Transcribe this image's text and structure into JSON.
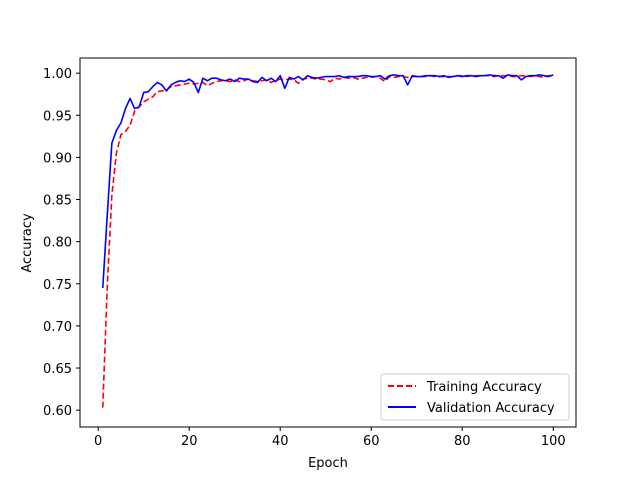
{
  "chart_data": {
    "type": "line",
    "xlabel": "Epoch",
    "ylabel": "Accuracy",
    "xlim": [
      -4,
      105
    ],
    "ylim": [
      0.58,
      1.018
    ],
    "xticks": [
      0,
      20,
      40,
      60,
      80,
      100
    ],
    "yticks": [
      0.6,
      0.65,
      0.7,
      0.75,
      0.8,
      0.85,
      0.9,
      0.95,
      1.0
    ],
    "grid": false,
    "legend_position": "lower-right",
    "x": [
      1,
      2,
      3,
      4,
      5,
      6,
      7,
      8,
      9,
      10,
      11,
      12,
      13,
      14,
      15,
      16,
      17,
      18,
      19,
      20,
      21,
      22,
      23,
      24,
      25,
      26,
      27,
      28,
      29,
      30,
      31,
      32,
      33,
      34,
      35,
      36,
      37,
      38,
      39,
      40,
      41,
      42,
      43,
      44,
      45,
      46,
      47,
      48,
      49,
      50,
      51,
      52,
      53,
      54,
      55,
      56,
      57,
      58,
      59,
      60,
      61,
      62,
      63,
      64,
      65,
      66,
      67,
      68,
      69,
      70,
      71,
      72,
      73,
      74,
      75,
      76,
      77,
      78,
      79,
      80,
      81,
      82,
      83,
      84,
      85,
      86,
      87,
      88,
      89,
      90,
      91,
      92,
      93,
      94,
      95,
      96,
      97,
      98,
      99,
      100
    ],
    "series": [
      {
        "name": "Training Accuracy",
        "color": "#ff0000",
        "style": "dashed",
        "values": [
          0.603,
          0.748,
          0.855,
          0.905,
          0.927,
          0.931,
          0.938,
          0.955,
          0.96,
          0.966,
          0.969,
          0.972,
          0.978,
          0.979,
          0.98,
          0.984,
          0.985,
          0.986,
          0.987,
          0.988,
          0.987,
          0.988,
          0.989,
          0.985,
          0.988,
          0.99,
          0.991,
          0.991,
          0.99,
          0.992,
          0.99,
          0.991,
          0.993,
          0.991,
          0.99,
          0.991,
          0.992,
          0.989,
          0.991,
          0.993,
          0.992,
          0.993,
          0.992,
          0.988,
          0.993,
          0.994,
          0.994,
          0.993,
          0.993,
          0.992,
          0.99,
          0.994,
          0.993,
          0.995,
          0.994,
          0.995,
          0.993,
          0.994,
          0.995,
          0.995,
          0.996,
          0.994,
          0.99,
          0.996,
          0.995,
          0.996,
          0.996,
          0.995,
          0.996,
          0.996,
          0.996,
          0.996,
          0.997,
          0.996,
          0.996,
          0.996,
          0.996,
          0.996,
          0.997,
          0.997,
          0.996,
          0.997,
          0.997,
          0.997,
          0.997,
          0.997,
          0.996,
          0.997,
          0.997,
          0.997,
          0.996,
          0.996,
          0.997,
          0.997,
          0.996,
          0.997,
          0.996,
          0.995,
          0.997,
          0.997
        ]
      },
      {
        "name": "Validation Accuracy",
        "color": "#0000ff",
        "style": "solid",
        "values": [
          0.745,
          0.832,
          0.917,
          0.932,
          0.941,
          0.958,
          0.97,
          0.958,
          0.96,
          0.977,
          0.978,
          0.984,
          0.989,
          0.986,
          0.979,
          0.986,
          0.989,
          0.991,
          0.99,
          0.993,
          0.989,
          0.977,
          0.994,
          0.991,
          0.994,
          0.994,
          0.992,
          0.991,
          0.993,
          0.99,
          0.994,
          0.993,
          0.993,
          0.99,
          0.989,
          0.995,
          0.991,
          0.994,
          0.99,
          0.997,
          0.982,
          0.995,
          0.993,
          0.996,
          0.992,
          0.997,
          0.995,
          0.994,
          0.995,
          0.996,
          0.996,
          0.996,
          0.997,
          0.995,
          0.996,
          0.996,
          0.996,
          0.997,
          0.997,
          0.996,
          0.996,
          0.997,
          0.993,
          0.997,
          0.998,
          0.997,
          0.997,
          0.986,
          0.997,
          0.996,
          0.996,
          0.997,
          0.997,
          0.997,
          0.996,
          0.997,
          0.995,
          0.996,
          0.997,
          0.996,
          0.997,
          0.997,
          0.996,
          0.997,
          0.997,
          0.998,
          0.997,
          0.997,
          0.994,
          0.998,
          0.997,
          0.997,
          0.992,
          0.996,
          0.997,
          0.997,
          0.998,
          0.997,
          0.996,
          0.998
        ]
      }
    ]
  }
}
